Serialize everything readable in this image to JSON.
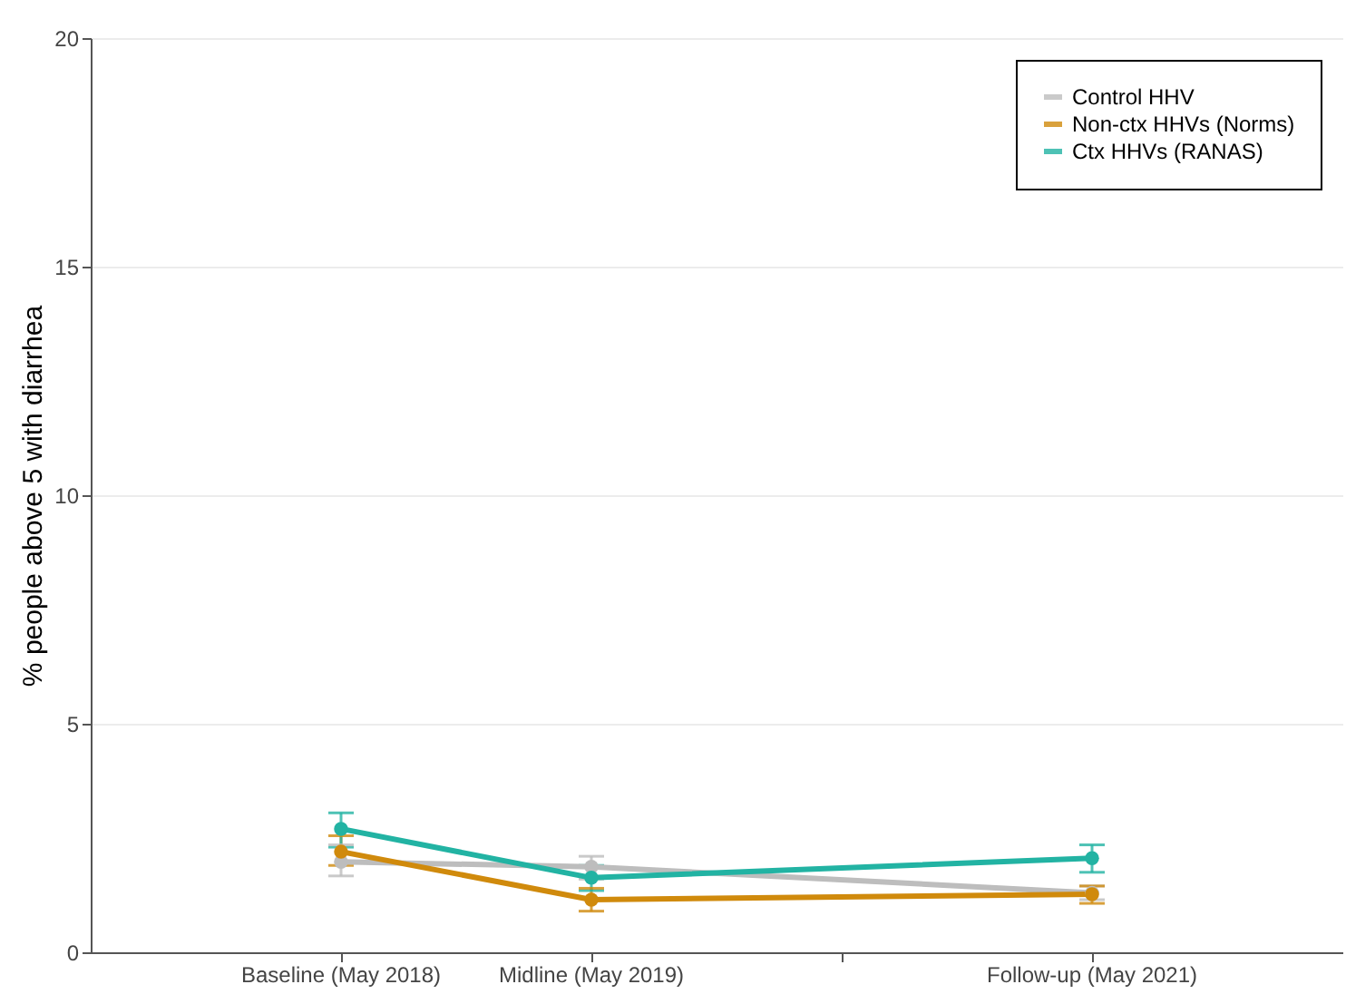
{
  "chart_data": {
    "type": "line",
    "ylabel": "% people above 5 with diarrhea",
    "categories": [
      "Baseline (May 2018)",
      "Midline (May 2019)",
      null,
      "Follow-up (May 2021)"
    ],
    "series": [
      {
        "name": "Control HHV",
        "color": "#bdbdbd",
        "values": [
          1.98,
          1.87,
          null,
          1.3
        ],
        "errors": [
          [
            1.67,
            2.35
          ],
          [
            1.6,
            2.1
          ],
          null,
          [
            1.15,
            1.45
          ]
        ]
      },
      {
        "name": "Non-ctx HHVs (Norms)",
        "color": "#d08a0c",
        "values": [
          2.2,
          1.15,
          null,
          1.27
        ],
        "errors": [
          [
            1.9,
            2.55
          ],
          [
            0.9,
            1.4
          ],
          null,
          [
            1.07,
            1.45
          ]
        ]
      },
      {
        "name": "Ctx HHVs (RANAS)",
        "color": "#22b3a3",
        "values": [
          2.7,
          1.63,
          null,
          2.06
        ],
        "errors": [
          [
            2.3,
            3.05
          ],
          [
            1.35,
            1.9
          ],
          null,
          [
            1.75,
            2.35
          ]
        ]
      }
    ],
    "ylim": [
      0,
      20
    ],
    "yticks": [
      0,
      5,
      10,
      15,
      20
    ],
    "grid": "y",
    "legend": "top right",
    "marker": "circle"
  }
}
